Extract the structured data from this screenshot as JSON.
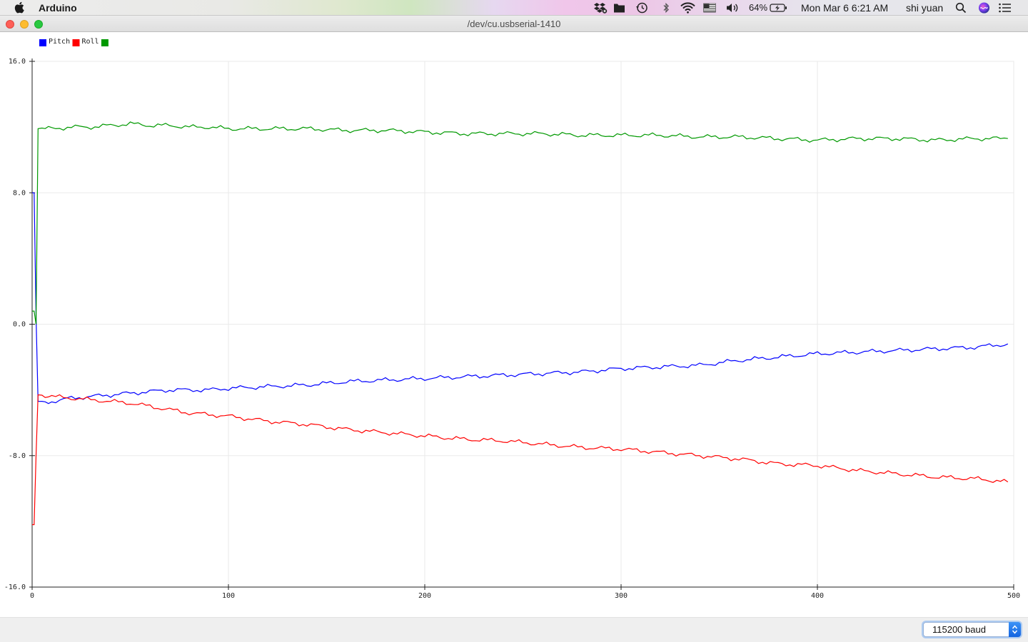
{
  "menubar": {
    "app_name": "Arduino",
    "battery": "64%",
    "datetime": "Mon Mar 6  6:21 AM",
    "user": "shi yuan",
    "icons": [
      "apple-icon",
      "dropbox-icon",
      "folder-icon",
      "time-machine-icon",
      "bluetooth-icon",
      "wifi-icon",
      "flag-icon",
      "volume-icon",
      "battery-icon",
      "search-icon",
      "siri-icon",
      "notification-list-icon"
    ]
  },
  "window": {
    "title": "/dev/cu.usbserial-1410"
  },
  "plotter": {
    "legend": [
      {
        "name": "Pitch",
        "color": "#0000ff"
      },
      {
        "name": "Roll",
        "color": "#ff0000"
      },
      {
        "name": "",
        "color": "#009900"
      }
    ]
  },
  "chart_data": {
    "type": "line",
    "ylim": [
      -16,
      16
    ],
    "xlim": [
      0,
      500
    ],
    "y_ticks": [
      "16.0",
      "8.0",
      "0.0",
      "-8.0",
      "-16.0"
    ],
    "x_ticks": [
      "0",
      "100",
      "200",
      "300",
      "400",
      "500"
    ],
    "grid": true,
    "series": [
      {
        "name": "Pitch",
        "color": "#0000ff",
        "x": [
          0,
          1,
          2,
          3,
          5,
          10,
          20,
          30,
          40,
          50,
          60,
          70,
          80,
          90,
          100,
          120,
          140,
          160,
          180,
          200,
          220,
          240,
          260,
          280,
          300,
          320,
          340,
          360,
          380,
          400,
          420,
          440,
          460,
          480,
          497
        ],
        "y": [
          8,
          8,
          0.5,
          -4.7,
          -4.8,
          -4.7,
          -4.5,
          -4.4,
          -4.3,
          -4.2,
          -4.1,
          -4.0,
          -4.0,
          -4.0,
          -3.9,
          -3.8,
          -3.7,
          -3.5,
          -3.4,
          -3.3,
          -3.2,
          -3.1,
          -3.0,
          -2.9,
          -2.7,
          -2.6,
          -2.5,
          -2.2,
          -2.0,
          -1.8,
          -1.7,
          -1.6,
          -1.5,
          -1.4,
          -1.2
        ]
      },
      {
        "name": "Roll",
        "color": "#ff0000",
        "x": [
          0,
          1,
          2,
          3,
          5,
          10,
          20,
          30,
          40,
          50,
          60,
          70,
          80,
          90,
          100,
          120,
          140,
          160,
          180,
          200,
          220,
          240,
          260,
          280,
          300,
          320,
          340,
          360,
          380,
          400,
          420,
          440,
          460,
          480,
          497
        ],
        "y": [
          -12.2,
          -12.2,
          -8,
          -4.3,
          -4.3,
          -4.4,
          -4.5,
          -4.6,
          -4.7,
          -4.8,
          -5.0,
          -5.2,
          -5.4,
          -5.5,
          -5.6,
          -5.9,
          -6.1,
          -6.4,
          -6.6,
          -6.8,
          -7.0,
          -7.1,
          -7.3,
          -7.5,
          -7.6,
          -7.8,
          -8.0,
          -8.2,
          -8.5,
          -8.6,
          -8.9,
          -9.1,
          -9.3,
          -9.4,
          -9.6
        ]
      },
      {
        "name": "",
        "color": "#009900",
        "x": [
          0,
          1,
          2,
          3,
          5,
          10,
          20,
          30,
          40,
          50,
          60,
          70,
          80,
          90,
          100,
          120,
          140,
          160,
          180,
          200,
          220,
          240,
          260,
          280,
          300,
          320,
          340,
          360,
          380,
          400,
          420,
          440,
          460,
          480,
          497
        ],
        "y": [
          0.8,
          0.8,
          0,
          11.9,
          11.9,
          11.9,
          12.0,
          12.0,
          12.1,
          12.2,
          12.1,
          12.1,
          12.0,
          12.0,
          11.9,
          11.9,
          11.9,
          11.8,
          11.8,
          11.7,
          11.6,
          11.6,
          11.6,
          11.5,
          11.5,
          11.5,
          11.4,
          11.4,
          11.3,
          11.2,
          11.3,
          11.3,
          11.2,
          11.3,
          11.3
        ]
      }
    ]
  },
  "footer": {
    "baud": "115200 baud"
  }
}
